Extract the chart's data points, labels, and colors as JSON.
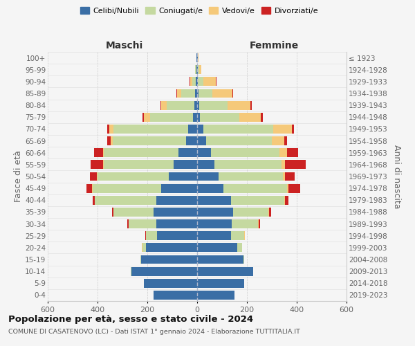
{
  "age_groups": [
    "100+",
    "95-99",
    "90-94",
    "85-89",
    "80-84",
    "75-79",
    "70-74",
    "65-69",
    "60-64",
    "55-59",
    "50-54",
    "45-49",
    "40-44",
    "35-39",
    "30-34",
    "25-29",
    "20-24",
    "15-19",
    "10-14",
    "5-9",
    "0-4"
  ],
  "birth_years": [
    "≤ 1923",
    "1924-1928",
    "1929-1933",
    "1934-1938",
    "1939-1943",
    "1944-1948",
    "1949-1953",
    "1954-1958",
    "1959-1963",
    "1964-1968",
    "1969-1973",
    "1974-1978",
    "1979-1983",
    "1984-1988",
    "1989-1993",
    "1994-1998",
    "1999-2003",
    "2004-2008",
    "2009-2013",
    "2014-2018",
    "2019-2023"
  ],
  "male_celibi": [
    2,
    3,
    5,
    8,
    12,
    18,
    35,
    45,
    75,
    95,
    115,
    145,
    165,
    175,
    165,
    160,
    205,
    225,
    265,
    215,
    175
  ],
  "male_coniugati": [
    1,
    4,
    15,
    55,
    110,
    170,
    300,
    295,
    300,
    280,
    285,
    275,
    245,
    160,
    110,
    45,
    15,
    4,
    1,
    0,
    0
  ],
  "male_vedovi": [
    1,
    2,
    8,
    18,
    22,
    25,
    18,
    8,
    4,
    3,
    3,
    2,
    2,
    1,
    1,
    0,
    3,
    0,
    0,
    0,
    0
  ],
  "male_divorziati": [
    0,
    0,
    2,
    3,
    4,
    6,
    8,
    12,
    35,
    50,
    28,
    22,
    8,
    5,
    4,
    2,
    0,
    0,
    0,
    0,
    0
  ],
  "female_celibi": [
    2,
    3,
    4,
    6,
    8,
    10,
    25,
    35,
    55,
    70,
    85,
    105,
    135,
    145,
    140,
    135,
    160,
    185,
    225,
    190,
    150
  ],
  "female_coniugati": [
    1,
    4,
    20,
    55,
    115,
    160,
    280,
    265,
    275,
    270,
    260,
    255,
    215,
    140,
    105,
    55,
    20,
    4,
    1,
    0,
    0
  ],
  "female_vedovi": [
    3,
    10,
    50,
    80,
    90,
    85,
    75,
    50,
    30,
    12,
    8,
    8,
    4,
    3,
    2,
    1,
    1,
    0,
    0,
    0,
    0
  ],
  "female_divorziati": [
    0,
    0,
    3,
    4,
    7,
    8,
    8,
    12,
    45,
    85,
    40,
    45,
    12,
    8,
    6,
    2,
    0,
    0,
    0,
    0,
    0
  ],
  "colors": {
    "celibi": "#3a6ea5",
    "coniugati": "#c5d9a0",
    "vedovi": "#f5c97a",
    "divorziati": "#cc2222"
  },
  "xlim": 600,
  "title": "Popolazione per età, sesso e stato civile - 2024",
  "subtitle": "COMUNE DI CASATENOVO (LC) - Dati ISTAT 1° gennaio 2024 - Elaborazione TUTTITALIA.IT",
  "xlabel_left": "Maschi",
  "xlabel_right": "Femmine",
  "ylabel_left": "Fasce di età",
  "ylabel_right": "Anni di nascita",
  "background_color": "#f5f5f5"
}
